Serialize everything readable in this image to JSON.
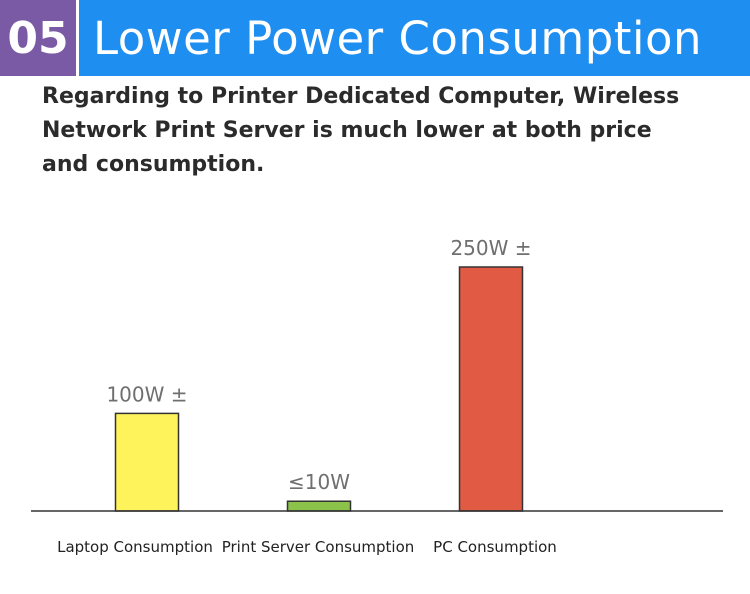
{
  "header": {
    "badge": "05",
    "title": "Lower Power Consumption",
    "colors": {
      "badge_bg": "#7b5aa5",
      "title_bg": "#1f8ef1"
    }
  },
  "description": "Regarding to Printer Dedicated Computer, Wireless Network Print Server is much lower at both price and consumption.",
  "chart_data": {
    "type": "bar",
    "categories": [
      "Laptop Consumption",
      "Print Server Consumption",
      "PC Consumption"
    ],
    "values": [
      100,
      10,
      250
    ],
    "data_labels": [
      "100W ±",
      "≤10W",
      "250W ±"
    ],
    "colors": [
      "#fff35c",
      "#8bc34a",
      "#e05a44"
    ],
    "ylim": [
      0,
      250
    ],
    "grid": false
  }
}
